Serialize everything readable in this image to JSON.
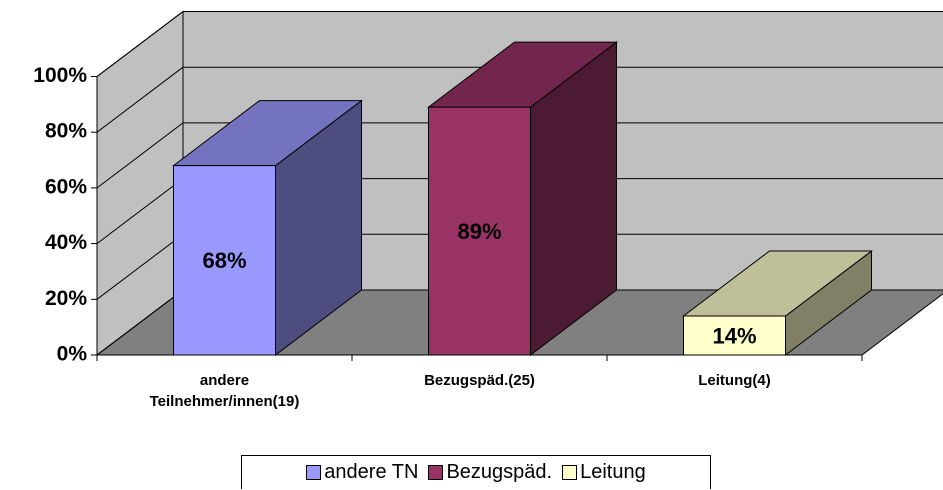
{
  "chart_data": {
    "type": "bar3d",
    "categories": [
      "andere Teilnehmer/innen(19)",
      "Bezugspäd.(25)",
      "Leitung(4)"
    ],
    "series": [
      {
        "name": "andere TN",
        "color": "#9999ff",
        "values": [
          68,
          null,
          null
        ],
        "value_labels": [
          "68%",
          null,
          null
        ]
      },
      {
        "name": "Bezugspäd.",
        "color": "#993366",
        "values": [
          null,
          89,
          null
        ],
        "value_labels": [
          null,
          "89%",
          null
        ]
      },
      {
        "name": "Leitung",
        "color": "#ffffcc",
        "values": [
          null,
          null,
          14
        ],
        "value_labels": [
          null,
          null,
          "14%"
        ]
      }
    ],
    "ylim": [
      0,
      100
    ],
    "yticks": [
      {
        "value": 0,
        "label": "0%"
      },
      {
        "value": 20,
        "label": "20%"
      },
      {
        "value": 40,
        "label": "40%"
      },
      {
        "value": 60,
        "label": "60%"
      },
      {
        "value": 80,
        "label": "80%"
      },
      {
        "value": 100,
        "label": "100%"
      }
    ],
    "grid": true,
    "legend": "bottom"
  }
}
